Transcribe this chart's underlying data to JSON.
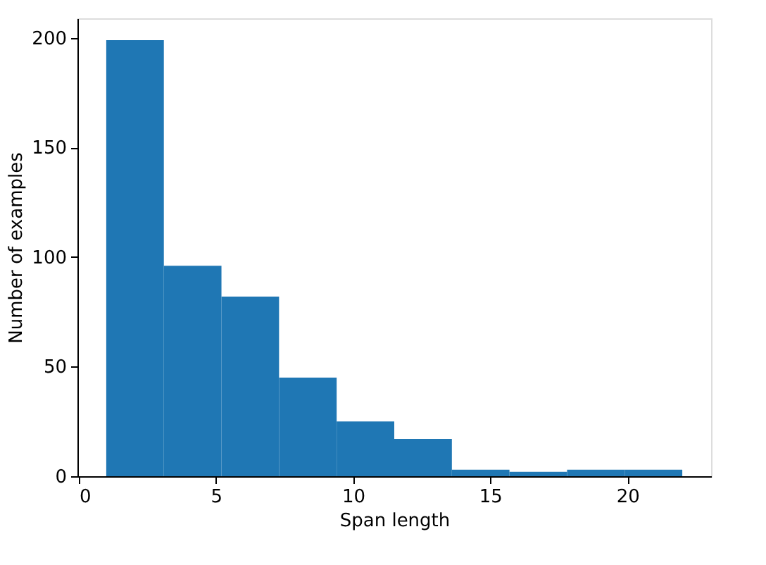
{
  "chart_data": {
    "type": "histogram",
    "xlabel": "Span length",
    "ylabel": "Number of examples",
    "bins": [
      1,
      3.1,
      5.2,
      7.3,
      9.4,
      11.5,
      13.6,
      15.7,
      17.8,
      19.9,
      22
    ],
    "values": [
      199,
      96,
      82,
      45,
      25,
      17,
      3,
      2,
      3,
      3
    ],
    "color": "#1f77b4",
    "xlim": [
      -0.05,
      23.05
    ],
    "xticks": [
      0,
      5,
      10,
      15,
      20
    ],
    "ylim": [
      0,
      208.95
    ],
    "yticks": [
      0,
      50,
      100,
      150,
      200
    ],
    "grid": false
  }
}
